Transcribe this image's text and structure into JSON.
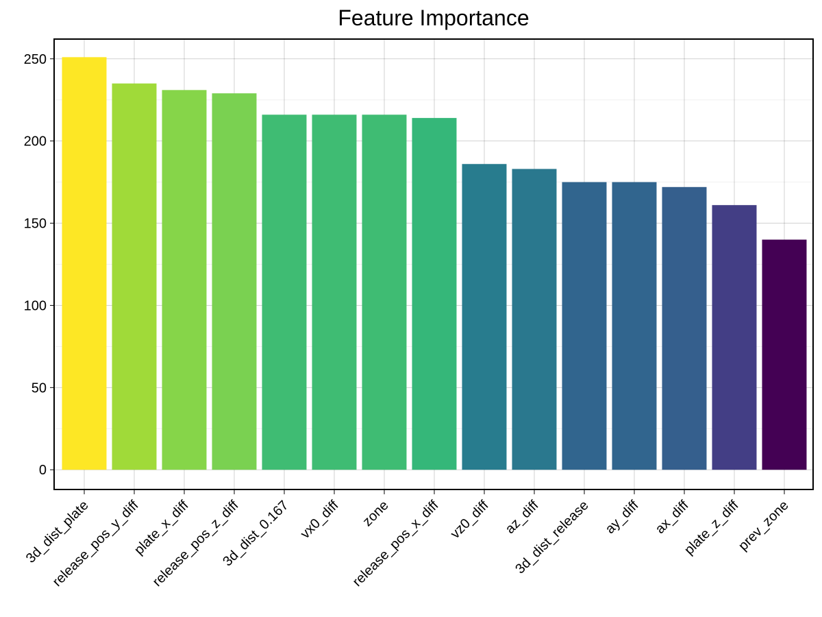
{
  "chart_data": {
    "type": "bar",
    "title": "Feature Importance",
    "xlabel": "",
    "ylabel": "",
    "categories": [
      "3d_dist_plate",
      "release_pos_y_diff",
      "plate_x_diff",
      "release_pos_z_diff",
      "3d_dist_0.167",
      "vx0_diff",
      "zone",
      "release_pos_x_diff",
      "vz0_diff",
      "az_diff",
      "3d_dist_release",
      "ay_diff",
      "ax_diff",
      "plate_z_diff",
      "prev_zone"
    ],
    "values": [
      251,
      235,
      231,
      229,
      216,
      216,
      216,
      214,
      186,
      183,
      175,
      175,
      172,
      161,
      140
    ],
    "colors": [
      "#fde725",
      "#a0da39",
      "#86d549",
      "#7ad151",
      "#3fbc73",
      "#3fbc73",
      "#3fbc73",
      "#35b779",
      "#287c8e",
      "#2a788e",
      "#31658e",
      "#31658e",
      "#355f8d",
      "#433e85",
      "#440154"
    ],
    "ylim": [
      -12,
      262
    ],
    "yticks": [
      0,
      50,
      100,
      150,
      200,
      250
    ],
    "ytick_labels": [
      "0",
      "50",
      "100",
      "150",
      "200",
      "250"
    ],
    "grid": true,
    "legend": "none"
  }
}
